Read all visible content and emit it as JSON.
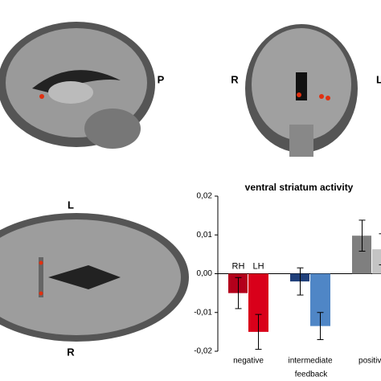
{
  "brain_labels": [
    "P",
    "R",
    "L",
    "L",
    "R"
  ],
  "chart_data": {
    "type": "bar",
    "title": "ventral striatum activity",
    "x_label": "feedback",
    "categories": [
      "negative",
      "intermediate",
      "positive"
    ],
    "series": [
      {
        "name": "RH",
        "colors": [
          "#b3001b",
          "#1f3f7a",
          "#7f7f7f"
        ],
        "values": [
          -0.005,
          -0.002,
          0.0098
        ],
        "errors": [
          0.004,
          0.0035,
          0.004
        ]
      },
      {
        "name": "LH",
        "colors": [
          "#d9001a",
          "#4f86c6",
          "#c4c4c4"
        ],
        "values": [
          -0.015,
          -0.0135,
          0.0063
        ],
        "errors": [
          0.0045,
          0.0035,
          0.004
        ]
      }
    ],
    "ylim": [
      -0.02,
      0.02
    ],
    "yticks": [
      {
        "value": 0.02,
        "label": "0,02"
      },
      {
        "value": 0.01,
        "label": "0,01"
      },
      {
        "value": 0,
        "label": "0,00"
      },
      {
        "value": -0.01,
        "label": "-0,01"
      },
      {
        "value": -0.02,
        "label": "-0,02"
      }
    ]
  }
}
